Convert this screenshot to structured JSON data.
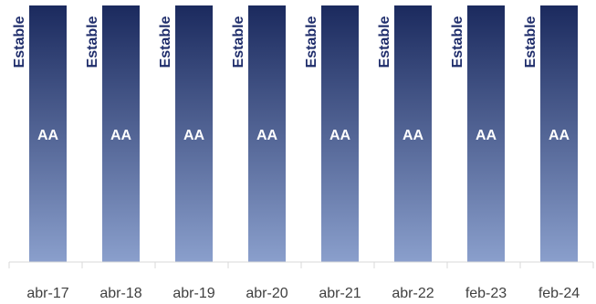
{
  "chart_data": {
    "type": "bar",
    "categories": [
      "abr-17",
      "abr-18",
      "abr-19",
      "abr-20",
      "abr-21",
      "abr-22",
      "feb-23",
      "feb-24"
    ],
    "values": [
      1,
      1,
      1,
      1,
      1,
      1,
      1,
      1
    ],
    "bar_labels": [
      "AA",
      "AA",
      "AA",
      "AA",
      "AA",
      "AA",
      "AA",
      "AA"
    ],
    "outlook_labels": [
      "Estable",
      "Estable",
      "Estable",
      "Estable",
      "Estable",
      "Estable",
      "Estable",
      "Estable"
    ],
    "title": "",
    "xlabel": "",
    "ylabel": "",
    "ylim": [
      0,
      1
    ],
    "grid": false,
    "colors": {
      "bar_top": "#1b2a5e",
      "bar_bottom": "#8a9fcc",
      "outlook_text": "#1f2d6b",
      "bar_text": "#ffffff",
      "axis": "#d9d9d9",
      "tick_text": "#404040"
    }
  }
}
